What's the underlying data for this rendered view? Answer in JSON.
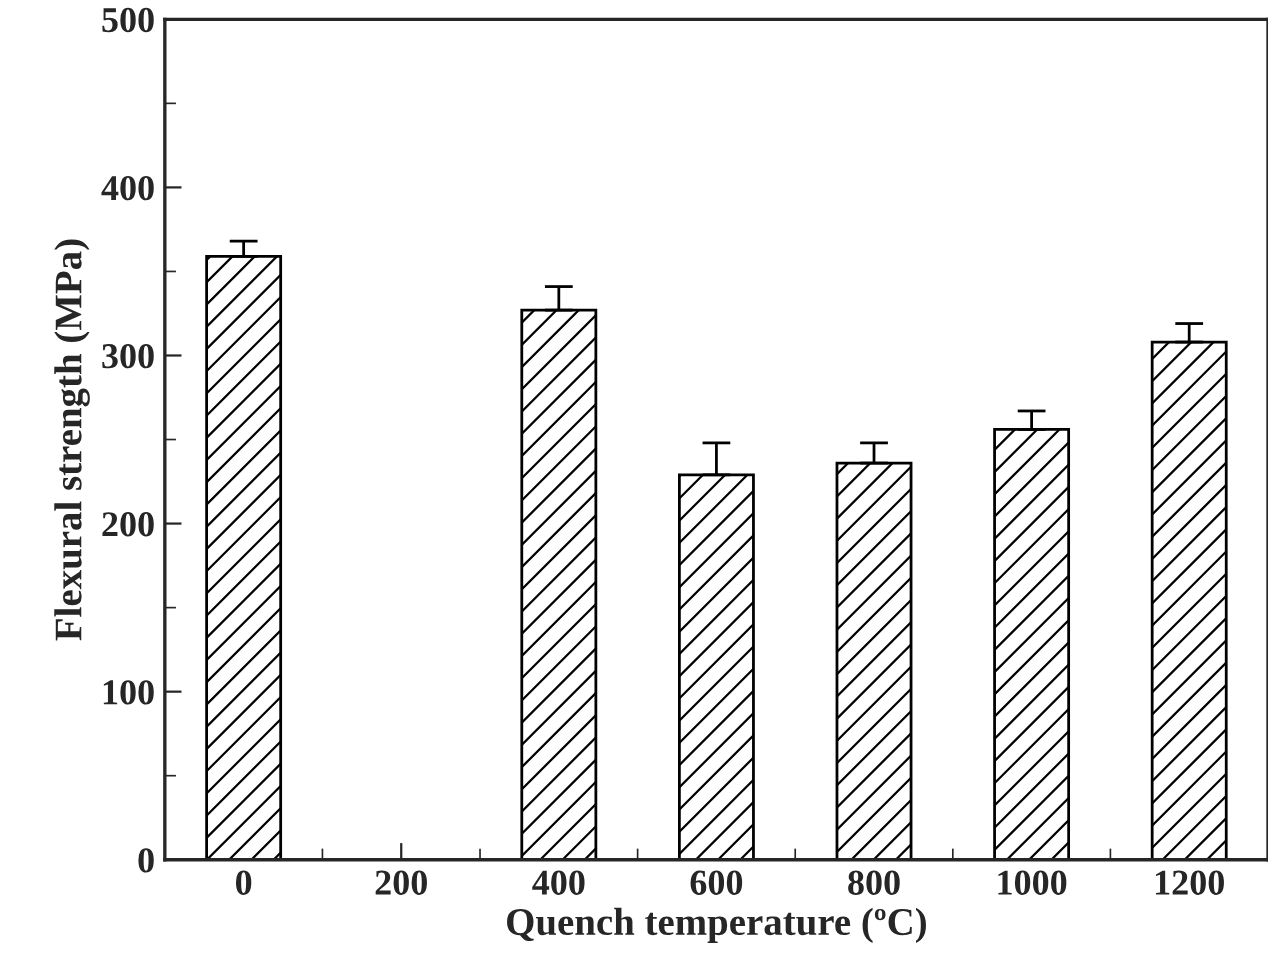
{
  "chart_data": {
    "type": "bar",
    "xlabel": "Quench temperature (ºC)",
    "ylabel": "Flexural strength (MPa)",
    "categories": [
      "0",
      "200",
      "400",
      "600",
      "800",
      "1000",
      "1200"
    ],
    "values": [
      359,
      null,
      327,
      229,
      236,
      256,
      308
    ],
    "errors": [
      [
        359,
        368
      ],
      null,
      [
        327,
        341
      ],
      [
        229,
        248
      ],
      [
        236,
        248
      ],
      [
        256,
        267
      ],
      [
        308,
        319
      ]
    ],
    "color": "#000000",
    "ylim": [
      0,
      500
    ],
    "yticks": [
      0,
      100,
      200,
      300,
      400,
      500
    ],
    "grid": false,
    "legend": false
  }
}
